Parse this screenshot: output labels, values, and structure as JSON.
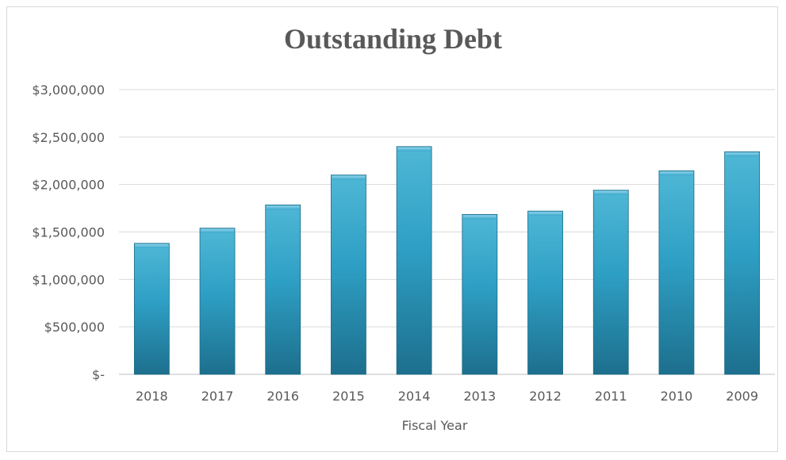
{
  "chart_data": {
    "type": "bar",
    "title": "Outstanding Debt",
    "xlabel": "Fiscal Year",
    "ylabel": "",
    "categories": [
      "2018",
      "2017",
      "2016",
      "2015",
      "2014",
      "2013",
      "2012",
      "2011",
      "2010",
      "2009"
    ],
    "values": [
      1380000,
      1540000,
      1785000,
      2100000,
      2400000,
      1685000,
      1720000,
      1940000,
      2145000,
      2345000
    ],
    "ylim": [
      0,
      3000000
    ],
    "yticks": [
      0,
      500000,
      1000000,
      1500000,
      2000000,
      2500000,
      3000000
    ],
    "ytick_labels": [
      "$-",
      "$500,000",
      "$1,000,000",
      "$1,500,000",
      "$2,000,000",
      "$2,500,000",
      "$3,000,000"
    ],
    "grid": true,
    "legend": "none",
    "colors": {
      "bar_top": "#4fb7d6",
      "bar_mid": "#2e9fc4",
      "bar_bottom": "#1d6f8d",
      "grid": "#d9d9d9",
      "axis": "#bfbfbf"
    }
  }
}
